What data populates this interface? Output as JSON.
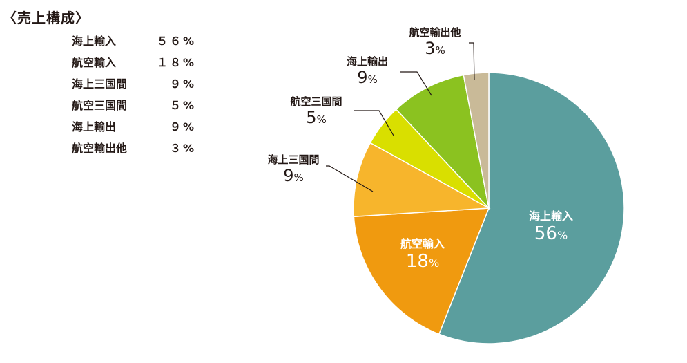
{
  "title": "〈売上構成〉",
  "legend": [
    {
      "label": "海上輸入",
      "value": "５６%"
    },
    {
      "label": "航空輸入",
      "value": "１８%"
    },
    {
      "label": "海上三国間",
      "value": "９%"
    },
    {
      "label": "航空三国間",
      "value": "５%"
    },
    {
      "label": "海上輸出",
      "value": "９%"
    },
    {
      "label": "航空輸出他",
      "value": "３%"
    }
  ],
  "chart_data": {
    "type": "pie",
    "title": "〈売上構成〉",
    "start": "top, clockwise",
    "categories": [
      "海上輸入",
      "航空輸入",
      "海上三国間",
      "航空三国間",
      "海上輸出",
      "航空輸出他"
    ],
    "values": [
      56,
      18,
      9,
      5,
      9,
      3
    ],
    "unit": "%",
    "colors": [
      "#5b9e9e",
      "#f09a0f",
      "#f7b52c",
      "#d9df00",
      "#8bc220",
      "#c9ba98"
    ],
    "label_placement": [
      "inside",
      "inside",
      "outside",
      "outside",
      "outside",
      "outside"
    ]
  }
}
